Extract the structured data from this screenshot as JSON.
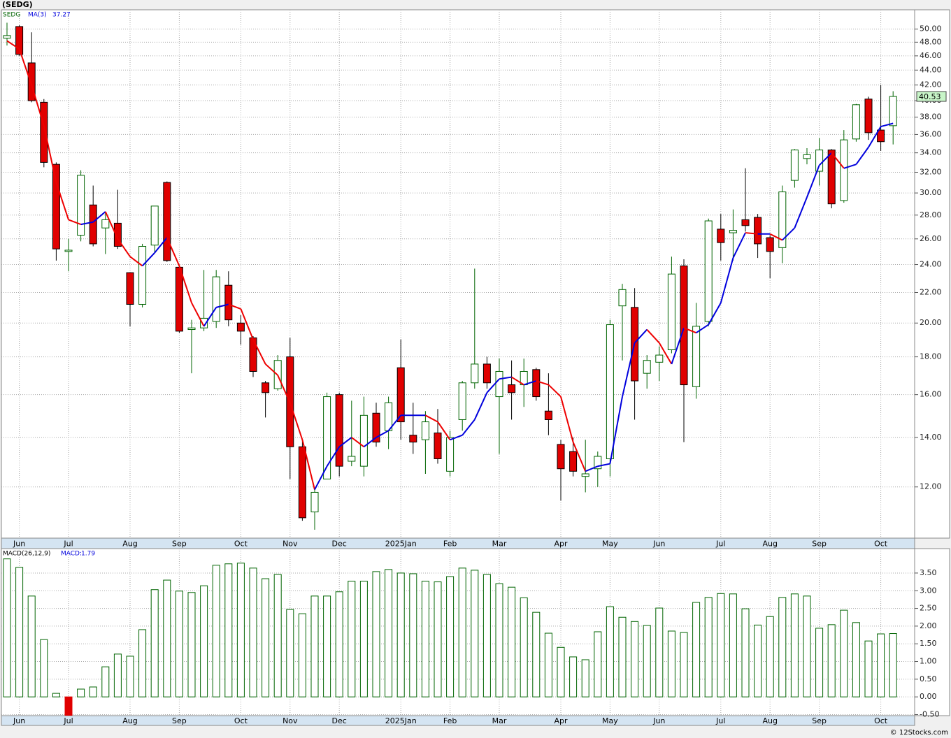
{
  "title": "(SEDG)",
  "footer": "© 12Stocks.com",
  "chart_data": [
    {
      "type": "candlestick",
      "name": "SEDG",
      "up_color": "#006400",
      "down_color": "#e00000",
      "categories": [
        null,
        "Jun",
        null,
        null,
        null,
        "Jul",
        null,
        null,
        null,
        null,
        "Aug",
        null,
        null,
        null,
        "Sep",
        null,
        null,
        null,
        null,
        "Oct",
        null,
        null,
        null,
        "Nov",
        null,
        null,
        null,
        "Dec",
        null,
        null,
        null,
        null,
        "2025Jan",
        null,
        null,
        null,
        "Feb",
        null,
        null,
        null,
        "Mar",
        null,
        null,
        null,
        null,
        "Apr",
        null,
        null,
        null,
        "May",
        null,
        null,
        null,
        "Jun",
        null,
        null,
        null,
        null,
        "Jul",
        null,
        null,
        null,
        "Aug",
        null,
        null,
        null,
        "Sep",
        null,
        null,
        null,
        null,
        "Oct",
        null
      ],
      "open": [
        48.6,
        50.4,
        45,
        39.8,
        32.8,
        25,
        26.3,
        28.9,
        26.9,
        27.3,
        23.4,
        21.2,
        25.5,
        31.0,
        23.8,
        19.6,
        19.7,
        20.1,
        22.5,
        20,
        19.1,
        16.6,
        16.3,
        18,
        13.6,
        11.1,
        12.3,
        16,
        13.0,
        12.8,
        15.1,
        14.3,
        17.4,
        14.1,
        13.9,
        14.2,
        12.6,
        14.8,
        16.6,
        17.6,
        15.9,
        16.5,
        16.5,
        17.3,
        15.2,
        13.7,
        13.4,
        12.4,
        12.7,
        13.1,
        21.1,
        21,
        17.1,
        17.7,
        18.4,
        23.9,
        16.4,
        20.1,
        26.8,
        26.5,
        27.6,
        27.8,
        26.1,
        25.3,
        31.2,
        33.4,
        32.1,
        34.3,
        29.3,
        35.5,
        40.2,
        36.5,
        37
      ],
      "high": [
        51,
        50.6,
        49.5,
        40.2,
        33,
        26,
        32.2,
        30.7,
        28.2,
        30.3,
        23.4,
        25.6,
        28.8,
        31.1,
        24,
        20.2,
        23.6,
        23.6,
        23.5,
        20.5,
        19.2,
        16.7,
        18.1,
        19.1,
        13.9,
        11.9,
        16.1,
        16.1,
        15.7,
        15.9,
        15.6,
        15.9,
        19,
        15.6,
        15.2,
        15.3,
        14.3,
        16.7,
        23.7,
        18,
        17.9,
        17.8,
        17.9,
        17.4,
        17.1,
        13.9,
        14,
        13.9,
        13.4,
        20.2,
        22.6,
        22.3,
        18.1,
        18.6,
        24.6,
        24.4,
        21.3,
        27.7,
        28.1,
        28.5,
        32.4,
        28.1,
        26.3,
        30.7,
        34.4,
        34.5,
        35.6,
        34.4,
        36.5,
        39.6,
        40.5,
        42,
        41.2
      ],
      "low": [
        47.5,
        46,
        39.8,
        32.5,
        24.3,
        23.5,
        25.8,
        25.4,
        24.8,
        25.2,
        19.8,
        21,
        24.9,
        24.2,
        19.4,
        17.1,
        19.5,
        19.7,
        19.8,
        18.7,
        16.9,
        14.9,
        16.2,
        12.3,
        10.8,
        10.5,
        12.3,
        12.4,
        12.8,
        12.4,
        13.6,
        13.5,
        13.9,
        13.3,
        12.5,
        12.9,
        12.4,
        14.3,
        16.3,
        16.3,
        13.3,
        14.8,
        15.4,
        15.7,
        14.1,
        11.5,
        12.4,
        11.8,
        12,
        12.4,
        17.8,
        14.8,
        16.3,
        16.7,
        18.2,
        13.8,
        15.8,
        19.8,
        24.3,
        24.3,
        26.6,
        24.5,
        23,
        24.1,
        30.5,
        32.8,
        30.7,
        28.6,
        29.1,
        35.2,
        35.4,
        34.2,
        34.9
      ],
      "close": [
        49.0,
        46.2,
        40,
        33,
        25.2,
        25.1,
        31.7,
        25.6,
        27.6,
        25.4,
        21.2,
        25.4,
        28.8,
        24.3,
        19.5,
        19.7,
        20.3,
        23.1,
        20.2,
        19.5,
        17.2,
        16.1,
        17.8,
        13.6,
        10.9,
        11.8,
        15.9,
        12.8,
        13.2,
        15,
        13.8,
        15.6,
        14.7,
        13.8,
        14.7,
        13.1,
        14,
        16.6,
        17.6,
        16.6,
        17.2,
        16.1,
        17.2,
        15.9,
        14.8,
        12.7,
        12.6,
        12.5,
        13.2,
        19.9,
        22.2,
        16.7,
        17.8,
        18.1,
        23.3,
        16.5,
        19.8,
        27.5,
        25.7,
        26.7,
        27.1,
        25.6,
        25,
        30.1,
        34.3,
        33.8,
        34.3,
        29,
        35.4,
        39.5,
        36.2,
        35.2,
        40.53
      ],
      "ma": {
        "name": "MA(3)",
        "up_color": "#0000dd",
        "down_color": "#ee0000",
        "values": [
          48.2,
          47,
          42,
          37,
          31,
          27.6,
          27.2,
          27.4,
          28.3,
          26,
          24.6,
          23.9,
          24.9,
          26.1,
          23.9,
          21.3,
          19.8,
          21.0,
          21.2,
          20.9,
          19,
          17.6,
          17,
          15.6,
          13.9,
          11.9,
          12.8,
          13.6,
          14.0,
          13.6,
          14.0,
          14.3,
          15,
          15,
          15,
          14.7,
          13.9,
          14.1,
          14.8,
          16.1,
          16.8,
          16.9,
          16.5,
          16.7,
          16.5,
          15.9,
          13.8,
          12.6,
          12.8,
          12.9,
          15.9,
          18.8,
          19.6,
          18.8,
          17.6,
          19.7,
          19.4,
          19.9,
          21.3,
          24.5,
          26.5,
          26.4,
          26.4,
          25.9,
          26.9,
          29.6,
          32.7,
          34,
          32.4,
          32.8,
          34.6,
          36.9,
          37.27
        ]
      },
      "log_scale": true,
      "grid": true,
      "ylim": [
        10.23,
        53.1
      ],
      "yticks": [
        {
          "value": 12,
          "label": "12.00"
        },
        {
          "value": 14,
          "label": "14.00"
        },
        {
          "value": 16,
          "label": "16.00"
        },
        {
          "value": 18,
          "label": "18.00"
        },
        {
          "value": 20,
          "label": "20.00"
        },
        {
          "value": 22,
          "label": "22.00"
        },
        {
          "value": 24,
          "label": "24.00"
        },
        {
          "value": 26,
          "label": "26.00"
        },
        {
          "value": 28,
          "label": "28.00"
        },
        {
          "value": 30,
          "label": "30.00"
        },
        {
          "value": 32,
          "label": "32.00"
        },
        {
          "value": 34,
          "label": "34.00"
        },
        {
          "value": 36,
          "label": "36.00"
        },
        {
          "value": 38,
          "label": "38.00"
        },
        {
          "value": 40,
          "label": "40.00"
        },
        {
          "value": 42,
          "label": "42.00"
        },
        {
          "value": 44,
          "label": "44.00"
        },
        {
          "value": 46,
          "label": "46.00"
        },
        {
          "value": 48,
          "label": "48.00"
        },
        {
          "value": 50,
          "label": "50.00"
        }
      ]
    },
    {
      "type": "bar",
      "name": "MACD(26,12,9)",
      "legend_label": "MACD:",
      "color": "#006400",
      "negative_color": "#e00000",
      "categories": [
        null,
        "Jun",
        null,
        null,
        null,
        "Jul",
        null,
        null,
        null,
        null,
        "Aug",
        null,
        null,
        null,
        "Sep",
        null,
        null,
        null,
        null,
        "Oct",
        null,
        null,
        null,
        "Nov",
        null,
        null,
        null,
        "Dec",
        null,
        null,
        null,
        null,
        "2025Jan",
        null,
        null,
        null,
        "Feb",
        null,
        null,
        null,
        "Mar",
        null,
        null,
        null,
        null,
        "Apr",
        null,
        null,
        null,
        "May",
        null,
        null,
        null,
        "Jun",
        null,
        null,
        null,
        null,
        "Jul",
        null,
        null,
        null,
        "Aug",
        null,
        null,
        null,
        "Sep",
        null,
        null,
        null,
        null,
        "Oct",
        null
      ],
      "values": [
        3.9,
        3.66,
        2.85,
        1.62,
        0.1,
        -0.52,
        0.22,
        0.28,
        0.85,
        1.21,
        1.15,
        1.9,
        3.03,
        3.3,
        2.99,
        2.95,
        3.14,
        3.72,
        3.76,
        3.78,
        3.64,
        3.34,
        3.46,
        2.47,
        2.35,
        2.85,
        2.85,
        2.97,
        3.27,
        3.27,
        3.54,
        3.6,
        3.5,
        3.48,
        3.27,
        3.25,
        3.4,
        3.64,
        3.58,
        3.46,
        3.2,
        3.1,
        2.8,
        2.39,
        1.8,
        1.4,
        1.13,
        1.05,
        1.84,
        2.55,
        2.25,
        2.13,
        2.02,
        2.51,
        1.86,
        1.82,
        2.67,
        2.81,
        2.92,
        2.91,
        2.49,
        2.03,
        2.27,
        2.81,
        2.91,
        2.85,
        1.94,
        2.04,
        2.45,
        2.1,
        1.58,
        1.78,
        1.79
      ],
      "grid": true,
      "ylim": [
        -0.53,
        4.19
      ],
      "yticks": [
        {
          "value": -0.5,
          "label": "-0.50"
        },
        {
          "value": 0,
          "label": "0.00"
        },
        {
          "value": 0.5,
          "label": "0.50"
        },
        {
          "value": 1,
          "label": "1.00"
        },
        {
          "value": 1.5,
          "label": "1.50"
        },
        {
          "value": 2,
          "label": "2.00"
        },
        {
          "value": 2.5,
          "label": "2.50"
        },
        {
          "value": 3,
          "label": "3.00"
        },
        {
          "value": 3.5,
          "label": "3.50"
        }
      ]
    }
  ]
}
